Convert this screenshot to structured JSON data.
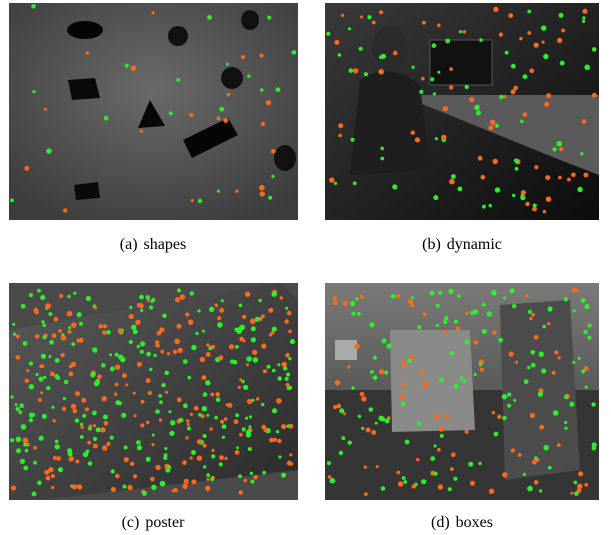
{
  "figure": {
    "panels": [
      {
        "label": "(a)",
        "caption": "shapes"
      },
      {
        "label": "(b)",
        "caption": "dynamic"
      },
      {
        "label": "(c)",
        "caption": "poster"
      },
      {
        "label": "(d)",
        "caption": "boxes"
      }
    ]
  }
}
